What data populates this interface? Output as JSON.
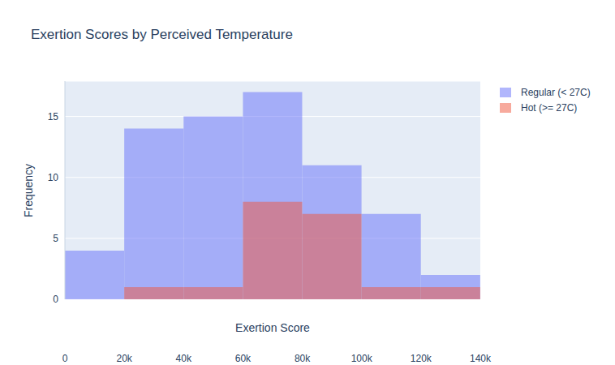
{
  "chart_data": {
    "type": "histogram",
    "title": "Exertion Scores by Perceived Temperature",
    "x_label": "Exertion Score",
    "y_label": "Frequency",
    "bins": [
      0,
      20000,
      40000,
      60000,
      80000,
      100000,
      120000,
      140000
    ],
    "series": [
      {
        "name": "Regular (< 27C)",
        "color": "#636efa",
        "values": [
          4,
          14,
          15,
          17,
          11,
          7,
          2
        ]
      },
      {
        "name": "Hot (>= 27C)",
        "color": "#ef553b",
        "values": [
          0,
          1,
          1,
          8,
          7,
          1,
          1
        ]
      }
    ],
    "xlim": [
      0,
      140000
    ],
    "xticks": [
      0,
      {
        "value": 20000,
        "label": "20k"
      },
      {
        "value": 40000,
        "label": "40k"
      },
      {
        "value": 60000,
        "label": "60k"
      },
      {
        "value": 80000,
        "label": "80k"
      },
      {
        "value": 100000,
        "label": "100k"
      },
      {
        "value": 120000,
        "label": "120k"
      },
      {
        "value": 140000,
        "label": "140k"
      }
    ],
    "ylim": [
      0,
      17.9
    ],
    "yticks": [
      0,
      5,
      10,
      15
    ],
    "grid": true,
    "legend": "right"
  }
}
